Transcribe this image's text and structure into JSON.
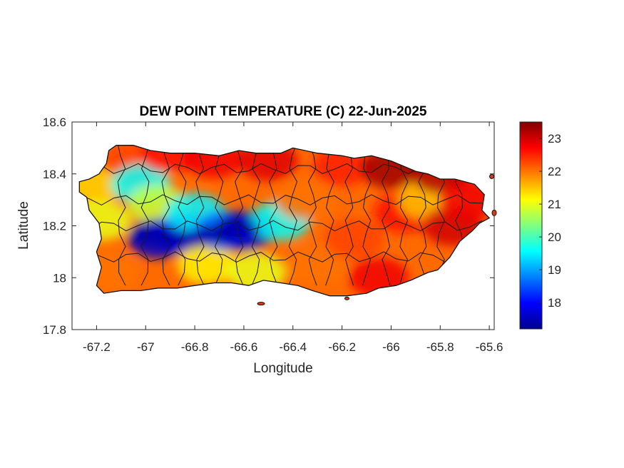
{
  "chart_data": {
    "type": "heatmap",
    "title": "DEW POINT TEMPERATURE (C) 22-Jun-2025",
    "xlabel": "Longitude",
    "ylabel": "Latitude",
    "xlim": [
      -67.3,
      -65.58
    ],
    "ylim": [
      17.8,
      18.6
    ],
    "xticks": [
      -67.2,
      -67,
      -66.8,
      -66.6,
      -66.4,
      -66.2,
      -66,
      -65.8,
      -65.6
    ],
    "xtick_labels": [
      "-67.2",
      "-67",
      "-66.8",
      "-66.6",
      "-66.4",
      "-66.2",
      "-66",
      "-65.8",
      "-65.6"
    ],
    "yticks": [
      17.8,
      18,
      18.2,
      18.4,
      18.6
    ],
    "ytick_labels": [
      "17.8",
      "18",
      "18.2",
      "18.4",
      "18.6"
    ],
    "colorbar": {
      "range": [
        17.2,
        23.5
      ],
      "ticks": [
        18,
        19,
        20,
        21,
        22,
        23
      ],
      "tick_labels": [
        "18",
        "19",
        "20",
        "21",
        "22",
        "23"
      ],
      "colormap": "jet"
    },
    "grid": false,
    "region": "Puerto Rico",
    "field_samples": [
      {
        "lon": -67.22,
        "lat": 18.35,
        "value": 21.4
      },
      {
        "lon": -67.18,
        "lat": 18.22,
        "value": 21.0
      },
      {
        "lon": -67.15,
        "lat": 18.02,
        "value": 22.0
      },
      {
        "lon": -67.05,
        "lat": 18.45,
        "value": 22.3
      },
      {
        "lon": -67.02,
        "lat": 18.36,
        "value": 19.6
      },
      {
        "lon": -66.95,
        "lat": 18.28,
        "value": 20.8
      },
      {
        "lon": -66.95,
        "lat": 18.15,
        "value": 17.6
      },
      {
        "lon": -66.9,
        "lat": 18.48,
        "value": 22.6
      },
      {
        "lon": -66.85,
        "lat": 18.17,
        "value": 17.8
      },
      {
        "lon": -66.8,
        "lat": 18.25,
        "value": 19.5
      },
      {
        "lon": -66.75,
        "lat": 18.05,
        "value": 21.2
      },
      {
        "lon": -66.72,
        "lat": 18.46,
        "value": 22.8
      },
      {
        "lon": -66.68,
        "lat": 18.18,
        "value": 18.6
      },
      {
        "lon": -66.6,
        "lat": 18.18,
        "value": 17.6
      },
      {
        "lon": -66.55,
        "lat": 18.02,
        "value": 21.0
      },
      {
        "lon": -66.5,
        "lat": 18.45,
        "value": 22.9
      },
      {
        "lon": -66.45,
        "lat": 18.22,
        "value": 19.6
      },
      {
        "lon": -66.35,
        "lat": 18.3,
        "value": 22.0
      },
      {
        "lon": -66.3,
        "lat": 18.05,
        "value": 22.0
      },
      {
        "lon": -66.2,
        "lat": 18.43,
        "value": 22.5
      },
      {
        "lon": -66.15,
        "lat": 18.15,
        "value": 22.3
      },
      {
        "lon": -66.05,
        "lat": 18.0,
        "value": 22.8
      },
      {
        "lon": -66.0,
        "lat": 18.42,
        "value": 23.3
      },
      {
        "lon": -65.95,
        "lat": 18.25,
        "value": 22.6
      },
      {
        "lon": -65.85,
        "lat": 18.3,
        "value": 21.5
      },
      {
        "lon": -65.8,
        "lat": 18.4,
        "value": 23.2
      },
      {
        "lon": -65.75,
        "lat": 18.2,
        "value": 23.0
      },
      {
        "lon": -65.68,
        "lat": 18.3,
        "value": 22.8
      }
    ]
  }
}
